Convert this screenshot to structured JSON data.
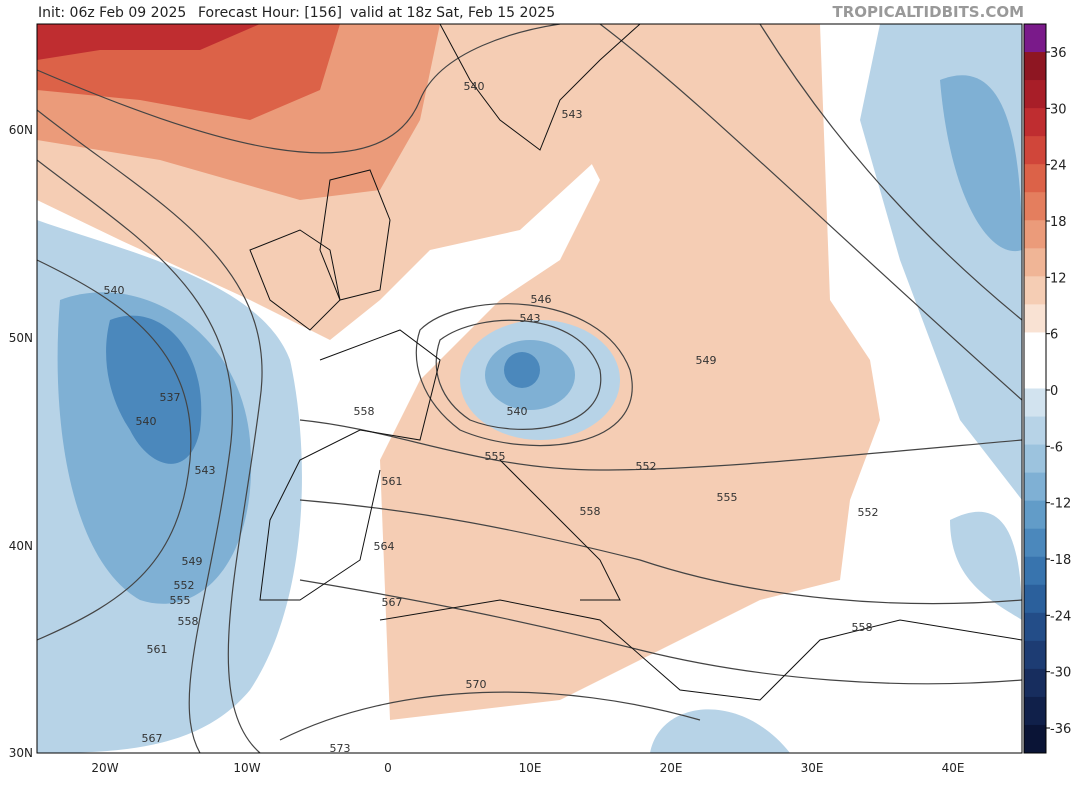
{
  "header": {
    "init": "Init: 06z Feb 09 2025",
    "forecast_hour": "Forecast Hour: [156]",
    "valid": "valid at 18z Sat, Feb 15 2025",
    "watermark": "TROPICALTIDBITS.COM"
  },
  "map": {
    "longitude_labels": [
      "20W",
      "10W",
      "0",
      "10E",
      "20E",
      "30E",
      "40E"
    ],
    "latitude_labels": [
      "60N",
      "50N",
      "40N",
      "30N"
    ],
    "contour_labels": [
      540,
      543,
      540,
      546,
      543,
      537,
      540,
      549,
      558,
      540,
      543,
      555,
      552,
      561,
      555,
      558,
      552,
      549,
      564,
      552,
      555,
      558,
      567,
      558,
      561,
      570,
      567,
      573
    ]
  },
  "colorbar": {
    "ticks": [
      36,
      30,
      24,
      18,
      12,
      6,
      0,
      -6,
      -12,
      -18,
      -24,
      -30,
      -36
    ],
    "colors": [
      "#7a1a8a",
      "#8e1622",
      "#a81e28",
      "#bf2d30",
      "#d0463a",
      "#dc6248",
      "#e47e5e",
      "#eb9b7a",
      "#f0b596",
      "#f5cdb4",
      "#f9e2d3",
      "#ffffff",
      "#ffffff",
      "#d2e3ef",
      "#b7d3e7",
      "#9cc3de",
      "#7fb0d4",
      "#629cc8",
      "#4b88bc",
      "#3874ae",
      "#2b609c",
      "#234d88",
      "#1d3c73",
      "#172d5e",
      "#10204a",
      "#0a1436"
    ]
  }
}
